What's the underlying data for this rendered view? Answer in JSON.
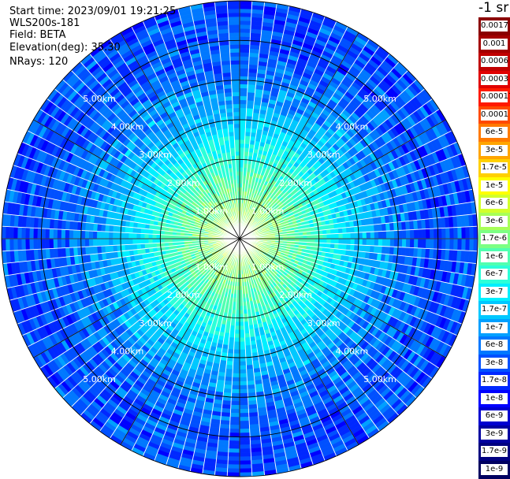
{
  "info": {
    "start_time": "Start time: 2023/09/01 19:21:25",
    "instrument": "WLS200s-181",
    "field": "Field: BETA",
    "elevation": "Elevation(deg): 35.30",
    "nrays": "NRays: 120"
  },
  "colorbar": {
    "title": "-1 sr",
    "stops": [
      {
        "label": "0.0017",
        "color": "#8b0000"
      },
      {
        "label": "0.001",
        "color": "#a40000"
      },
      {
        "label": "0.0006",
        "color": "#c00000"
      },
      {
        "label": "0.0003",
        "color": "#e00000"
      },
      {
        "label": "0.00017",
        "color": "#ff1a00"
      },
      {
        "label": "0.0001",
        "color": "#ff4a00"
      },
      {
        "label": "6e-5",
        "color": "#ff7a00"
      },
      {
        "label": "3e-5",
        "color": "#ffa500"
      },
      {
        "label": "1.7e-5",
        "color": "#ffd000"
      },
      {
        "label": "1e-5",
        "color": "#ffff00"
      },
      {
        "label": "6e-6",
        "color": "#d2ff2c"
      },
      {
        "label": "3e-6",
        "color": "#a8ff58"
      },
      {
        "label": "1.7e-6",
        "color": "#7cff84"
      },
      {
        "label": "1e-6",
        "color": "#50ffb0"
      },
      {
        "label": "6e-7",
        "color": "#2cffd8"
      },
      {
        "label": "3e-7",
        "color": "#00f0ff"
      },
      {
        "label": "1.7e-7",
        "color": "#00c8ff"
      },
      {
        "label": "1e-7",
        "color": "#00a0ff"
      },
      {
        "label": "6e-8",
        "color": "#0078ff"
      },
      {
        "label": "3e-8",
        "color": "#0050ff"
      },
      {
        "label": "1.7e-8",
        "color": "#0028ff"
      },
      {
        "label": "1e-8",
        "color": "#0000ff"
      },
      {
        "label": "6e-9",
        "color": "#0000d0"
      },
      {
        "label": "3e-9",
        "color": "#0000a0"
      },
      {
        "label": "1.7e-9",
        "color": "#000080"
      },
      {
        "label": "1e-9",
        "color": "#000060"
      }
    ]
  },
  "chart_data": {
    "type": "heatmap",
    "projection": "polar PPI",
    "field": "BETA",
    "elevation_deg": 35.3,
    "n_rays": 120,
    "max_range_km": 6.0,
    "range_rings_km": [
      1.0,
      2.0,
      3.0,
      4.0,
      5.0,
      6.0
    ],
    "range_ring_labels": [
      "1.00km",
      "2.00km",
      "3.00km",
      "4.00km",
      "5.00km"
    ],
    "spokes_deg": [
      0,
      30,
      60,
      90,
      120,
      150,
      180,
      210,
      240,
      270,
      300,
      330
    ],
    "color_scale": "log",
    "value_range": [
      1e-09,
      0.0017
    ],
    "radial_profile": [
      {
        "range_km": 0.5,
        "beta": 3e-06
      },
      {
        "range_km": 1.0,
        "beta": 1.7e-06
      },
      {
        "range_km": 1.5,
        "beta": 1e-06
      },
      {
        "range_km": 2.0,
        "beta": 6e-07
      },
      {
        "range_km": 2.5,
        "beta": 3e-07
      },
      {
        "range_km": 3.0,
        "beta": 1.7e-07
      },
      {
        "range_km": 3.5,
        "beta": 1e-07
      },
      {
        "range_km": 4.0,
        "beta": 6e-08
      },
      {
        "range_km": 4.5,
        "beta": 4e-08
      },
      {
        "range_km": 5.0,
        "beta": 3e-08
      },
      {
        "range_km": 5.5,
        "beta": 3e-08
      },
      {
        "range_km": 6.0,
        "beta": 3e-08
      }
    ]
  }
}
